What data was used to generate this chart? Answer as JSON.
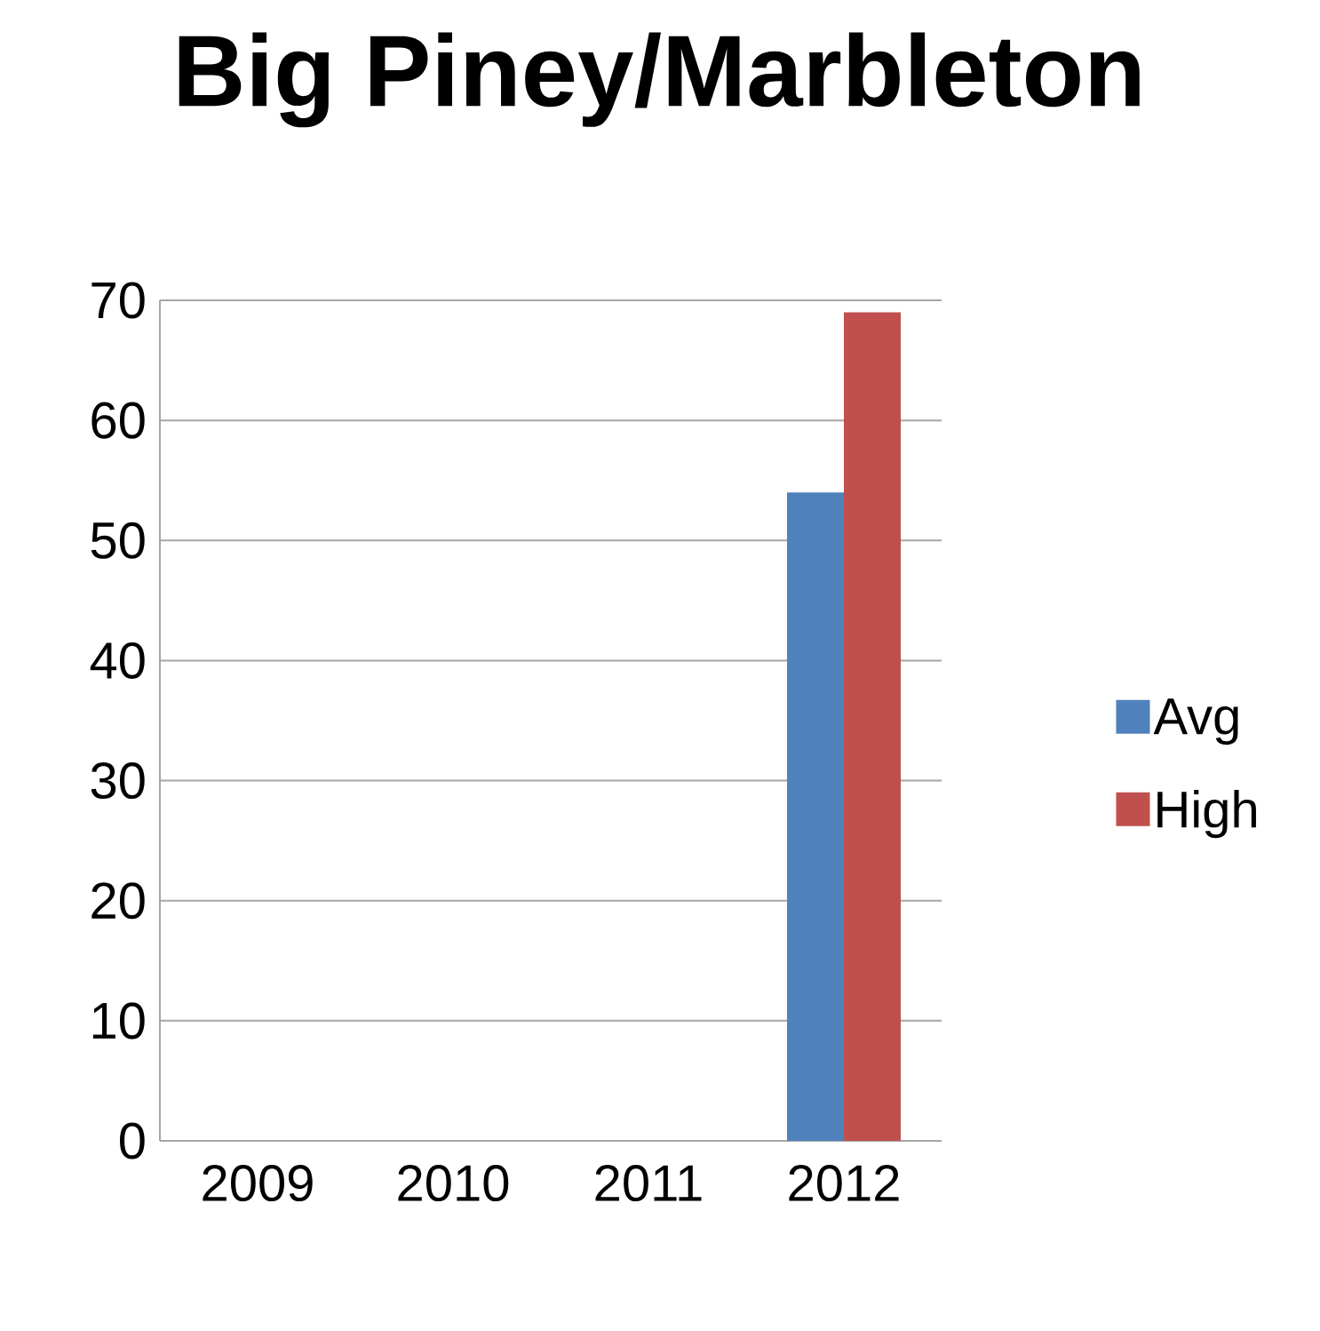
{
  "chart_data": {
    "type": "bar",
    "title": "Big Piney/Marbleton",
    "categories": [
      "2009",
      "2010",
      "2011",
      "2012"
    ],
    "series": [
      {
        "name": "Avg",
        "color": "#4f81bd",
        "values": [
          null,
          null,
          null,
          54
        ]
      },
      {
        "name": "High",
        "color": "#c0504d",
        "values": [
          null,
          null,
          null,
          69
        ]
      }
    ],
    "ylim": [
      0,
      70
    ],
    "yticks": [
      0,
      10,
      20,
      30,
      40,
      50,
      60,
      70
    ],
    "grid": "y",
    "legend": "right"
  }
}
